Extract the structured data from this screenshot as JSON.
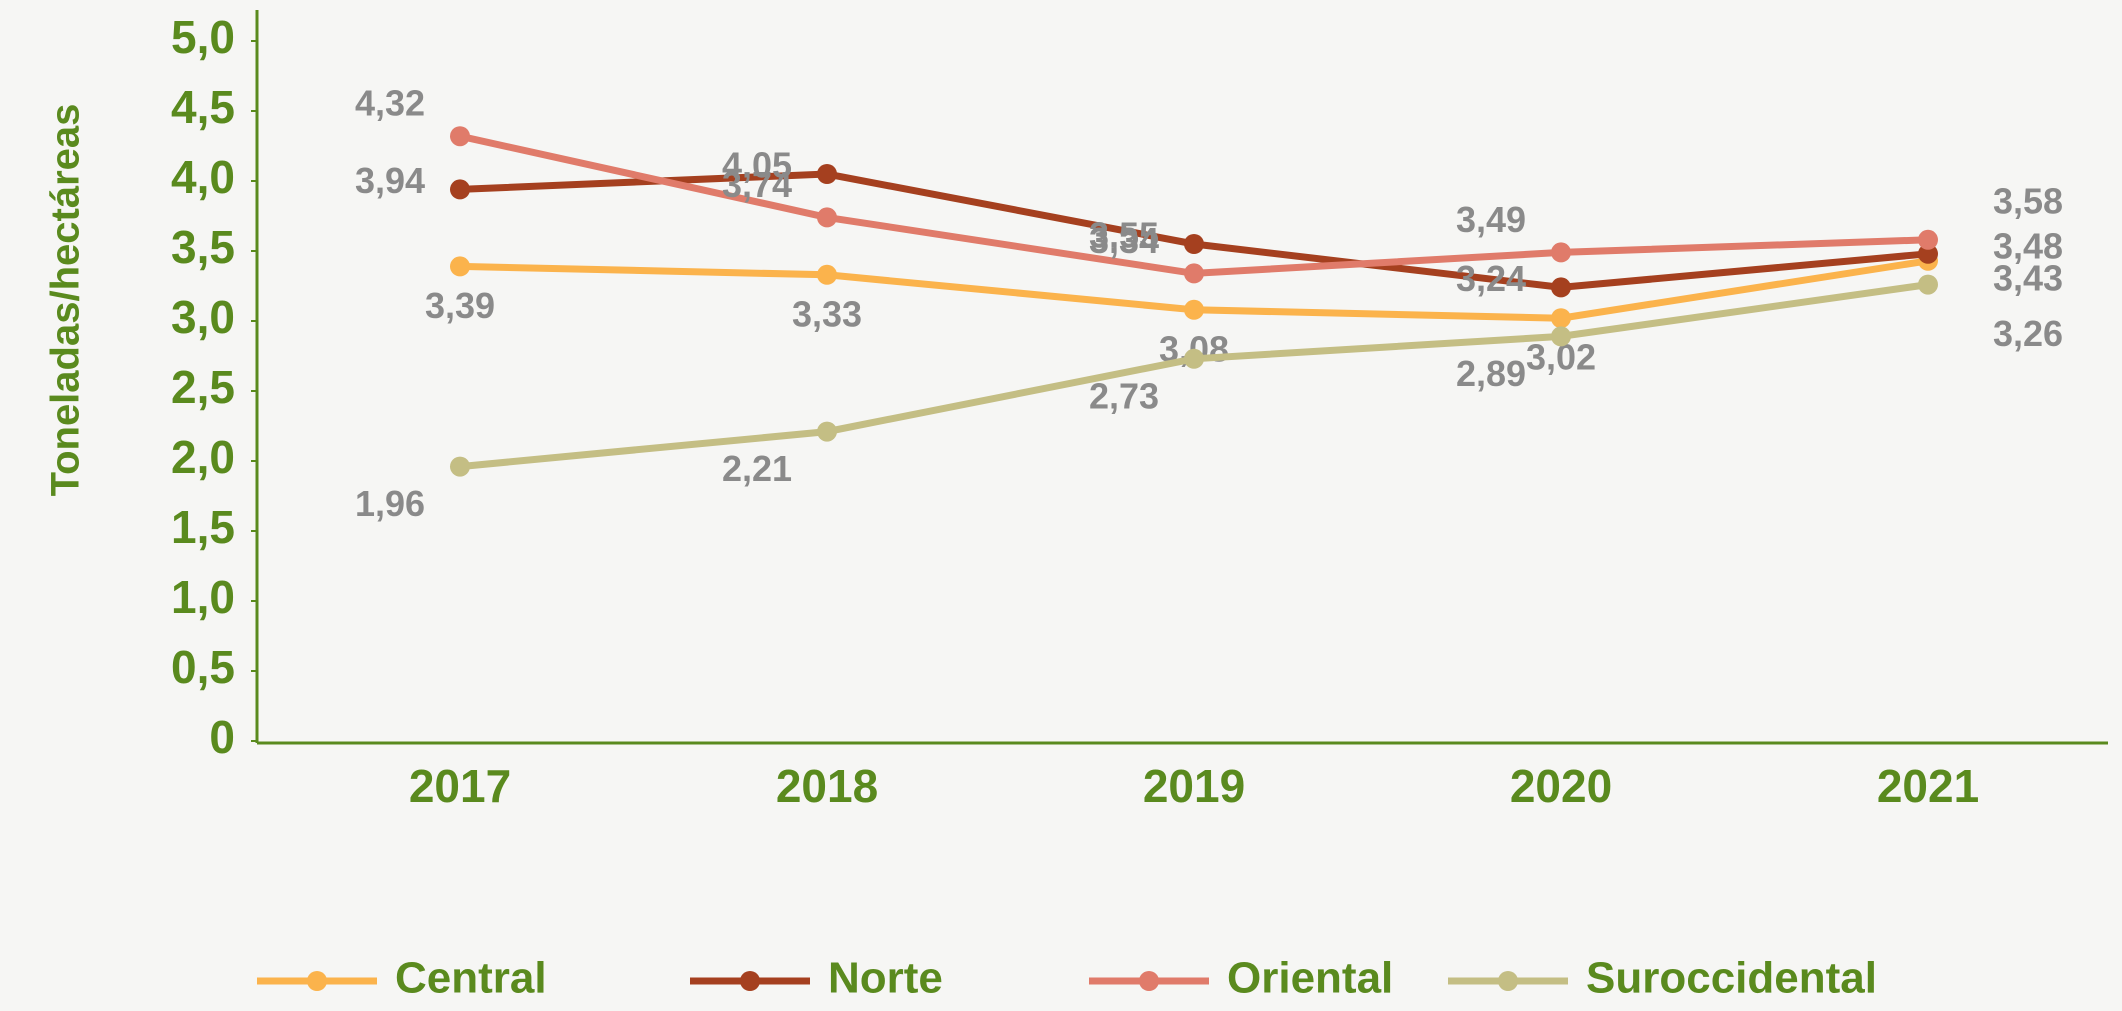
{
  "chart_data": {
    "type": "line",
    "y_label": "Toneladas/hectáreas",
    "categories": [
      "2017",
      "2018",
      "2019",
      "2020",
      "2021"
    ],
    "series": [
      {
        "name": "Central",
        "color": "#fbb34c",
        "values": [
          3.39,
          3.33,
          3.08,
          3.02,
          3.43
        ],
        "value_labels": [
          "3,39",
          "3,33",
          "3,08",
          "3,02",
          "3,43"
        ]
      },
      {
        "name": "Norte",
        "color": "#a5401f",
        "values": [
          3.94,
          4.05,
          3.55,
          3.24,
          3.48
        ],
        "value_labels": [
          "3,94",
          "4,05",
          "3,55",
          "3,24",
          "3,48"
        ]
      },
      {
        "name": "Oriental",
        "color": "#e07b6a",
        "values": [
          4.32,
          3.74,
          3.34,
          3.49,
          3.58
        ],
        "value_labels": [
          "4,32",
          "3,74",
          "3,34",
          "3,49",
          "3,58"
        ]
      },
      {
        "name": "Suroccidental",
        "color": "#c4be84",
        "values": [
          1.96,
          2.21,
          2.73,
          2.89,
          3.26
        ],
        "value_labels": [
          "1,96",
          "2,21",
          "2,73",
          "2,89",
          "3,26"
        ]
      }
    ],
    "ylim": [
      0,
      5
    ],
    "yticks": [
      0,
      {
        "value": 0.5,
        "label": "0,5"
      },
      {
        "value": 1,
        "label": "1,0"
      },
      {
        "value": 1.5,
        "label": "1,5"
      },
      {
        "value": 2,
        "label": "2,0"
      },
      {
        "value": 2.5,
        "label": "2,5"
      },
      {
        "value": 3,
        "label": "3,0"
      },
      {
        "value": 3.5,
        "label": "3,5"
      },
      {
        "value": 4,
        "label": "4,0"
      },
      {
        "value": 4.5,
        "label": "4,5"
      },
      {
        "value": 5,
        "label": "5,0"
      }
    ],
    "grid": false,
    "legend": "bottom"
  }
}
